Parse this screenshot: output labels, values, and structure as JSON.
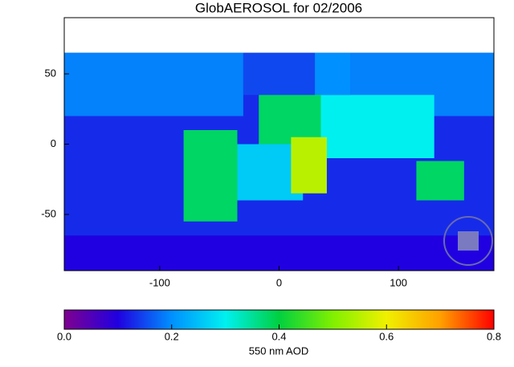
{
  "chart_data": {
    "type": "map",
    "title": "GlobAEROSOL for 02/2006",
    "xlim": [
      -180,
      180
    ],
    "ylim": [
      -90,
      90
    ],
    "xticks": [
      -100,
      0,
      100
    ],
    "yticks": [
      50,
      0,
      -50
    ],
    "colorbar": {
      "label": "550 nm AOD",
      "lim": [
        0,
        0.8
      ],
      "ticks": [
        {
          "value": 0,
          "label": "0.0"
        },
        0.2,
        0.4,
        0.6,
        0.8
      ],
      "colormap": [
        "#800090",
        "#2000e0",
        "#0090ff",
        "#00f0f0",
        "#00d040",
        "#80f000",
        "#f0f000",
        "#ffa000",
        "#ff0000"
      ]
    },
    "regions": [
      {
        "lon": [
          -180,
          180
        ],
        "lat": [
          -90,
          65
        ],
        "aod": 0.13
      },
      {
        "lon": [
          -180,
          -30
        ],
        "lat": [
          20,
          65
        ],
        "aod": 0.19
      },
      {
        "lon": [
          -30,
          30
        ],
        "lat": [
          35,
          65
        ],
        "aod": 0.15
      },
      {
        "lon": [
          30,
          60
        ],
        "lat": [
          35,
          65
        ],
        "aod": 0.2
      },
      {
        "lon": [
          60,
          180
        ],
        "lat": [
          20,
          65
        ],
        "aod": 0.19
      },
      {
        "lon": [
          30,
          130
        ],
        "lat": [
          -10,
          35
        ],
        "aod": 0.3
      },
      {
        "lon": [
          -60,
          20
        ],
        "lat": [
          -40,
          0
        ],
        "aod": 0.26
      },
      {
        "lon": [
          -17,
          35
        ],
        "lat": [
          0,
          35
        ],
        "aod": 0.38
      },
      {
        "lon": [
          10,
          40
        ],
        "lat": [
          -35,
          5
        ],
        "aod": 0.55
      },
      {
        "lon": [
          -80,
          -35
        ],
        "lat": [
          -55,
          10
        ],
        "aod": 0.38
      },
      {
        "lon": [
          115,
          155
        ],
        "lat": [
          -40,
          -12
        ],
        "aod": 0.38
      },
      {
        "lon": [
          -180,
          180
        ],
        "lat": [
          -90,
          -65
        ],
        "aod": 0.1
      }
    ]
  }
}
